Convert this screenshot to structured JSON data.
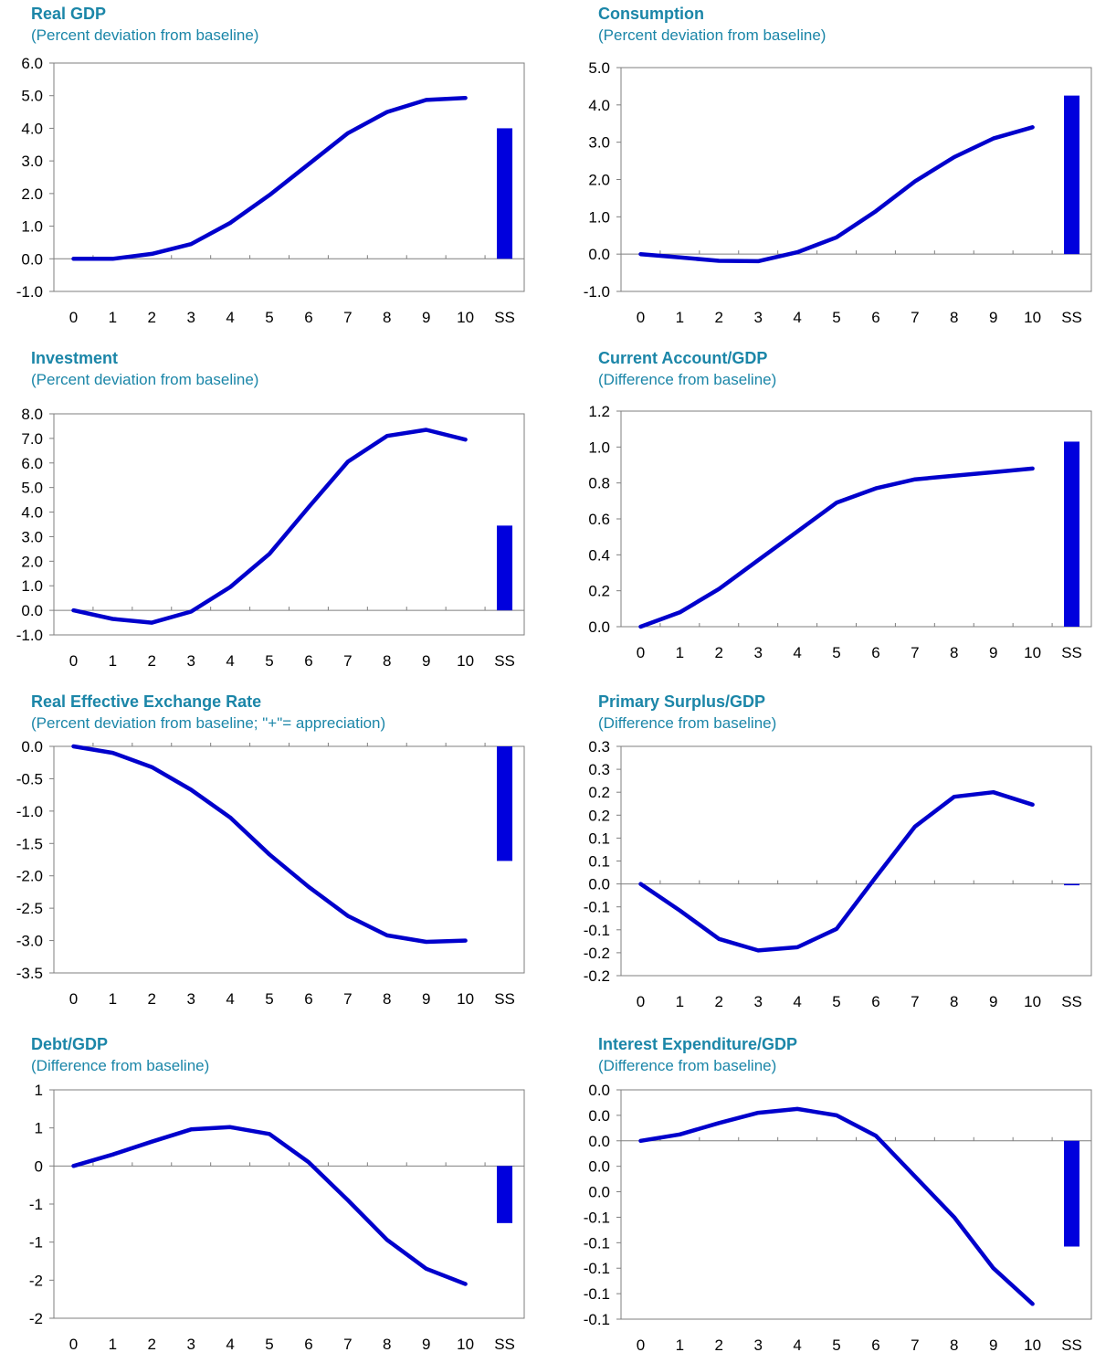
{
  "colors": {
    "title": "#1b86a8",
    "series": "#0000cc",
    "bar": "#0000dd",
    "axis": "#7f7f7f"
  },
  "chart_data": [
    {
      "type": "line",
      "title": "Real GDP",
      "subtitle": "(Percent deviation from baseline)",
      "categories": [
        "0",
        "1",
        "2",
        "3",
        "4",
        "5",
        "6",
        "7",
        "8",
        "9",
        "10",
        "SS"
      ],
      "x": [
        0,
        1,
        2,
        3,
        4,
        5,
        6,
        7,
        8,
        9,
        10
      ],
      "values": [
        0.0,
        0.0,
        0.15,
        0.45,
        1.1,
        1.95,
        2.9,
        3.85,
        4.5,
        4.87,
        4.93
      ],
      "ss_bar": 4.0,
      "ylim": [
        -1,
        6
      ],
      "yticks": [
        -1,
        0,
        1,
        2,
        3,
        4,
        5,
        6
      ],
      "ytick_labels": [
        "-1.0",
        "0.0",
        "1.0",
        "2.0",
        "3.0",
        "4.0",
        "5.0",
        "6.0"
      ],
      "grid": false
    },
    {
      "type": "line",
      "title": "Consumption",
      "subtitle": "(Percent deviation from baseline)",
      "categories": [
        "0",
        "1",
        "2",
        "3",
        "4",
        "5",
        "6",
        "7",
        "8",
        "9",
        "10",
        "SS"
      ],
      "x": [
        0,
        1,
        2,
        3,
        4,
        5,
        6,
        7,
        8,
        9,
        10
      ],
      "values": [
        0.0,
        -0.09,
        -0.18,
        -0.19,
        0.05,
        0.45,
        1.15,
        1.95,
        2.6,
        3.1,
        3.4
      ],
      "ss_bar": 4.25,
      "ylim": [
        -1,
        5
      ],
      "yticks": [
        -1,
        0,
        1,
        2,
        3,
        4,
        5
      ],
      "ytick_labels": [
        "-1.0",
        "0.0",
        "1.0",
        "2.0",
        "3.0",
        "4.0",
        "5.0"
      ],
      "grid": false
    },
    {
      "type": "line",
      "title": "Investment",
      "subtitle": "(Percent deviation from baseline)",
      "categories": [
        "0",
        "1",
        "2",
        "3",
        "4",
        "5",
        "6",
        "7",
        "8",
        "9",
        "10",
        "SS"
      ],
      "x": [
        0,
        1,
        2,
        3,
        4,
        5,
        6,
        7,
        8,
        9,
        10
      ],
      "values": [
        0.0,
        -0.35,
        -0.5,
        -0.05,
        0.95,
        2.3,
        4.2,
        6.05,
        7.1,
        7.35,
        6.95
      ],
      "ss_bar": 3.45,
      "ylim": [
        -1,
        8
      ],
      "yticks": [
        -1,
        0,
        1,
        2,
        3,
        4,
        5,
        6,
        7,
        8
      ],
      "ytick_labels": [
        "-1.0",
        "0.0",
        "1.0",
        "2.0",
        "3.0",
        "4.0",
        "5.0",
        "6.0",
        "7.0",
        "8.0"
      ],
      "grid": false
    },
    {
      "type": "line",
      "title": "Current Account/GDP",
      "subtitle": "(Difference from baseline)",
      "categories": [
        "0",
        "1",
        "2",
        "3",
        "4",
        "5",
        "6",
        "7",
        "8",
        "9",
        "10",
        "SS"
      ],
      "x": [
        0,
        1,
        2,
        3,
        4,
        5,
        6,
        7,
        8,
        9,
        10
      ],
      "values": [
        0.0,
        0.08,
        0.21,
        0.37,
        0.53,
        0.69,
        0.77,
        0.82,
        0.84,
        0.86,
        0.88
      ],
      "ss_bar": 1.03,
      "ylim": [
        0,
        1.2
      ],
      "yticks": [
        0,
        0.2,
        0.4,
        0.6,
        0.8,
        1.0,
        1.2
      ],
      "ytick_labels": [
        "0.0",
        "0.2",
        "0.4",
        "0.6",
        "0.8",
        "1.0",
        "1.2"
      ],
      "grid": false
    },
    {
      "type": "line",
      "title": "Real Effective Exchange Rate",
      "subtitle": "(Percent deviation from baseline; \"+\"= appreciation)",
      "categories": [
        "0",
        "1",
        "2",
        "3",
        "4",
        "5",
        "6",
        "7",
        "8",
        "9",
        "10",
        "SS"
      ],
      "x": [
        0,
        1,
        2,
        3,
        4,
        5,
        6,
        7,
        8,
        9,
        10
      ],
      "values": [
        0.0,
        -0.1,
        -0.32,
        -0.67,
        -1.1,
        -1.67,
        -2.17,
        -2.62,
        -2.92,
        -3.02,
        -3.0
      ],
      "ss_bar": -1.77,
      "ylim": [
        -3.5,
        0
      ],
      "yticks": [
        -3.5,
        -3.0,
        -2.5,
        -2.0,
        -1.5,
        -1.0,
        -0.5,
        0.0
      ],
      "ytick_labels": [
        "-3.5",
        "-3.0",
        "-2.5",
        "-2.0",
        "-1.5",
        "-1.0",
        "-0.5",
        "0.0"
      ],
      "grid": false
    },
    {
      "type": "line",
      "title": "Primary Surplus/GDP",
      "subtitle": "(Difference from baseline)",
      "categories": [
        "0",
        "1",
        "2",
        "3",
        "4",
        "5",
        "6",
        "7",
        "8",
        "9",
        "10",
        "SS"
      ],
      "x": [
        0,
        1,
        2,
        3,
        4,
        5,
        6,
        7,
        8,
        9,
        10
      ],
      "values": [
        0.0,
        -0.058,
        -0.12,
        -0.145,
        -0.138,
        -0.098,
        0.015,
        0.125,
        0.19,
        0.2,
        0.173
      ],
      "ss_bar": 0.0,
      "ylim": [
        -0.2,
        0.3
      ],
      "yticks": [
        -0.2,
        -0.15,
        -0.1,
        -0.05,
        0.0,
        0.05,
        0.1,
        0.15,
        0.2,
        0.25,
        0.3
      ],
      "ytick_labels": [
        "-0.2",
        "-0.2",
        "-0.1",
        "-0.1",
        "0.0",
        "0.1",
        "0.1",
        "0.2",
        "0.2",
        "0.3",
        "0.3"
      ],
      "grid": false
    },
    {
      "type": "line",
      "title": "Debt/GDP",
      "subtitle": "(Difference from baseline)",
      "categories": [
        "0",
        "1",
        "2",
        "3",
        "4",
        "5",
        "6",
        "7",
        "8",
        "9",
        "10",
        "SS"
      ],
      "x": [
        0,
        1,
        2,
        3,
        4,
        5,
        6,
        7,
        8,
        9,
        10
      ],
      "values": [
        0.0,
        0.15,
        0.32,
        0.48,
        0.51,
        0.42,
        0.05,
        -0.45,
        -0.97,
        -1.35,
        -1.55
      ],
      "ss_bar": -0.75,
      "ylim": [
        -2,
        1
      ],
      "yticks": [
        -2,
        -1.5,
        -1,
        -0.5,
        0,
        0.5,
        1
      ],
      "ytick_labels": [
        "-2",
        "-2",
        "-1",
        "-1",
        "0",
        "1",
        "1"
      ],
      "grid": false
    },
    {
      "type": "line",
      "title": "Interest Expenditure/GDP",
      "subtitle": "(Difference from baseline)",
      "categories": [
        "0",
        "1",
        "2",
        "3",
        "4",
        "5",
        "6",
        "7",
        "8",
        "9",
        "10",
        "SS"
      ],
      "x": [
        0,
        1,
        2,
        3,
        4,
        5,
        6,
        7,
        8,
        9,
        10
      ],
      "values": [
        0.0,
        0.005,
        0.014,
        0.022,
        0.025,
        0.02,
        0.004,
        -0.028,
        -0.06,
        -0.1,
        -0.128
      ],
      "ss_bar": -0.083,
      "ylim": [
        -0.14,
        0.04
      ],
      "yticks": [
        -0.14,
        -0.12,
        -0.1,
        -0.08,
        -0.06,
        -0.04,
        -0.02,
        0.0,
        0.02,
        0.04
      ],
      "ytick_labels": [
        "-0.1",
        "-0.1",
        "-0.1",
        "-0.1",
        "-0.1",
        "0.0",
        "0.0",
        "0.0",
        "0.0",
        "0.0"
      ],
      "grid": false
    }
  ]
}
